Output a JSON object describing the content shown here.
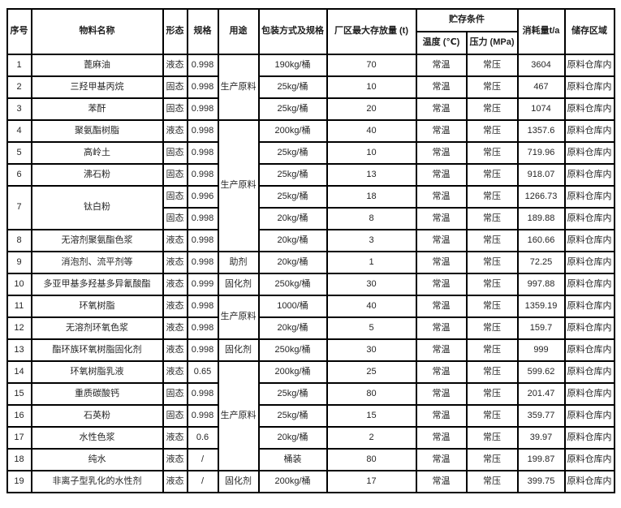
{
  "table": {
    "headers": {
      "index": "序号",
      "material_name": "物料名称",
      "form": "形态",
      "spec": "规格",
      "use": "用途",
      "packaging": "包装方式及规格",
      "max_storage": "厂区最大存放量 (t)",
      "storage_conditions": "贮存条件",
      "temperature": "温度 (℃)",
      "pressure": "压力 (MPa)",
      "consumption": "消耗量t/a",
      "storage_area": "储存区域"
    },
    "column_keys": [
      "index",
      "material-name",
      "form",
      "spec",
      "use",
      "packaging",
      "max-storage",
      "temperature",
      "pressure",
      "consumption",
      "storage-area"
    ],
    "rows": [
      [
        "1",
        "蓖麻油",
        "液态",
        "0.998",
        {
          "t": "生产原料",
          "rs": 3
        },
        "190kg/桶",
        "70",
        "常温",
        "常压",
        "3604",
        "原料仓库内"
      ],
      [
        "2",
        "三羟甲基丙烷",
        "固态",
        "0.998",
        "25kg/桶",
        "10",
        "常温",
        "常压",
        "467",
        "原料仓库内"
      ],
      [
        "3",
        "苯酐",
        "固态",
        "0.998",
        "25kg/桶",
        "20",
        "常温",
        "常压",
        "1074",
        "原料仓库内"
      ],
      [
        "4",
        "聚氨酯树脂",
        "液态",
        "0.998",
        {
          "t": "生产原料",
          "rs": 6
        },
        "200kg/桶",
        "40",
        "常温",
        "常压",
        "1357.6",
        "原料仓库内"
      ],
      [
        "5",
        "高岭土",
        "固态",
        "0.998",
        "25kg/桶",
        "10",
        "常温",
        "常压",
        "719.96",
        "原料仓库内"
      ],
      [
        "6",
        "沸石粉",
        "固态",
        "0.998",
        "25kg/桶",
        "13",
        "常温",
        "常压",
        "918.07",
        "原料仓库内"
      ],
      [
        {
          "t": "7",
          "rs": 2
        },
        {
          "t": "钛白粉",
          "rs": 2
        },
        "固态",
        "0.996",
        "25kg/桶",
        "18",
        "常温",
        "常压",
        "1266.73",
        "原料仓库内"
      ],
      [
        "固态",
        "0.998",
        "20kg/桶",
        "8",
        "常温",
        "常压",
        "189.88",
        "原料仓库内"
      ],
      [
        "8",
        "无溶剂聚氨酯色浆",
        "液态",
        "0.998",
        "20kg/桶",
        "3",
        "常温",
        "常压",
        "160.66",
        "原料仓库内"
      ],
      [
        "9",
        "消泡剂、流平剂等",
        "液态",
        "0.998",
        "助剂",
        "20kg/桶",
        "1",
        "常温",
        "常压",
        "72.25",
        "原料仓库内"
      ],
      [
        "10",
        "多亚甲基多羟基多异氰酸酯",
        "液态",
        "0.999",
        "固化剂",
        "250kg/桶",
        "30",
        "常温",
        "常压",
        "997.88",
        "原料仓库内"
      ],
      [
        "11",
        "环氧树脂",
        "液态",
        "0.998",
        {
          "t": "生产原料",
          "rs": 2
        },
        "1000/桶",
        "40",
        "常温",
        "常压",
        "1359.19",
        "原料仓库内"
      ],
      [
        "12",
        "无溶剂环氧色浆",
        "液态",
        "0.998",
        "20kg/桶",
        "5",
        "常温",
        "常压",
        "159.7",
        "原料仓库内"
      ],
      [
        "13",
        "酯环族环氧树脂固化剂",
        "液态",
        "0.998",
        "固化剂",
        "250kg/桶",
        "30",
        "常温",
        "常压",
        "999",
        "原料仓库内"
      ],
      [
        "14",
        "环氧树脂乳液",
        "液态",
        "0.65",
        {
          "t": "生产原料",
          "rs": 5
        },
        "200kg/桶",
        "25",
        "常温",
        "常压",
        "599.62",
        "原料仓库内"
      ],
      [
        "15",
        "重质碳酸钙",
        "固态",
        "0.998",
        "25kg/桶",
        "80",
        "常温",
        "常压",
        "201.47",
        "原料仓库内"
      ],
      [
        "16",
        "石英粉",
        "固态",
        "0.998",
        "25kg/桶",
        "15",
        "常温",
        "常压",
        "359.77",
        "原料仓库内"
      ],
      [
        "17",
        "水性色浆",
        "液态",
        "0.6",
        "20kg/桶",
        "2",
        "常温",
        "常压",
        "39.97",
        "原料仓库内"
      ],
      [
        "18",
        "纯水",
        "液态",
        "/",
        "桶装",
        "80",
        "常温",
        "常压",
        "199.87",
        "原料仓库内"
      ],
      [
        "19",
        "非离子型乳化的水性剂",
        "液态",
        "/",
        "固化剂",
        "200kg/桶",
        "17",
        "常温",
        "常压",
        "399.75",
        "原料仓库内"
      ]
    ]
  },
  "colors": {
    "border": "#000000",
    "text": "#262626",
    "background": "#ffffff"
  }
}
